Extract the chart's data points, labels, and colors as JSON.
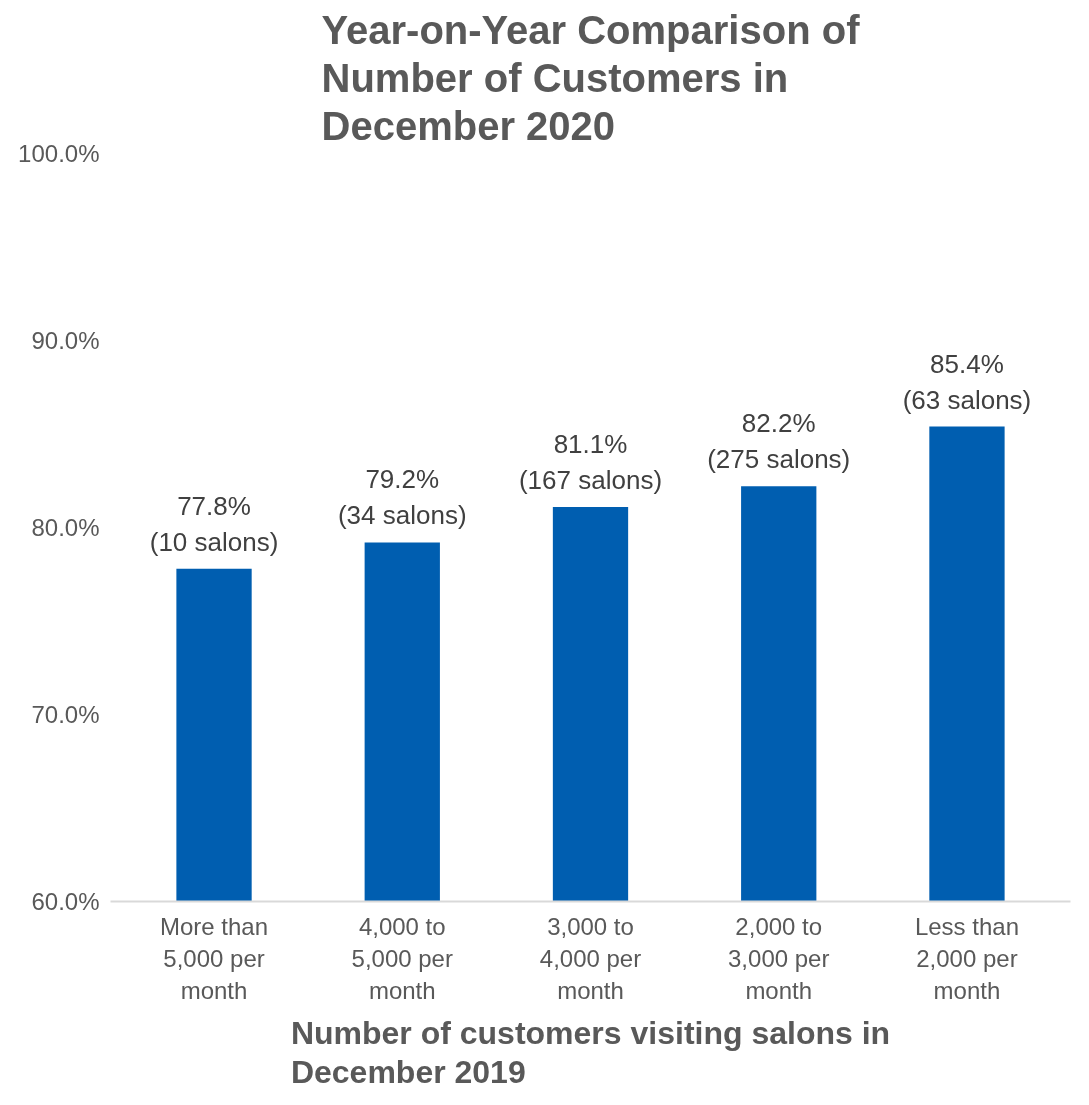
{
  "chart_data": {
    "type": "bar",
    "title": "Year-on-Year Comparison of Number of Customers in December 2020",
    "xlabel": "Number of customers visiting salons in December 2019",
    "categories": [
      "More than 5,000 per month",
      "4,000 to 5,000 per month",
      "3,000 to 4,000 per month",
      "2,000 to 3,000 per month",
      "Less than 2,000 per month"
    ],
    "values": [
      77.8,
      79.2,
      81.1,
      82.2,
      85.4
    ],
    "value_labels": [
      "77.8%\n(10 salons)",
      "79.2%\n(34 salons)",
      "81.1%\n(167 salons)",
      "82.2%\n(275 salons)",
      "85.4%\n(63 salons)"
    ],
    "color": "#005eb0",
    "ylim": [
      60,
      100
    ],
    "yticks": [
      {
        "value": 60,
        "label": "60.0%"
      },
      {
        "value": 70,
        "label": "70.0%"
      },
      {
        "value": 80,
        "label": "80.0%"
      },
      {
        "value": 90,
        "label": "90.0%"
      },
      {
        "value": 100,
        "label": "100.0%"
      }
    ],
    "grid": false
  }
}
